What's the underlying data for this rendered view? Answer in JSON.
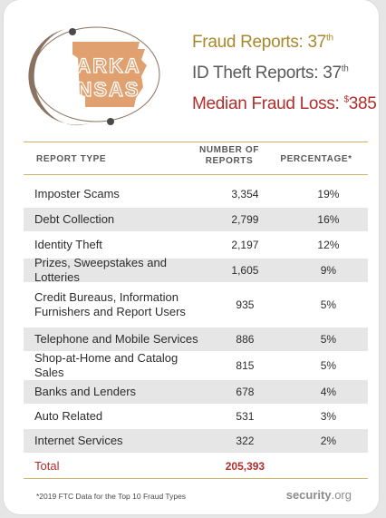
{
  "state": {
    "name_line1": "ARKA",
    "name_line2": "NSAS"
  },
  "stats": {
    "fraud_label": "Fraud Reports: 37",
    "fraud_suffix": "th",
    "idtheft_label": "ID Theft Reports: 37",
    "idtheft_suffix": "th",
    "loss_label": "Median Fraud Loss: ",
    "loss_currency": "$",
    "loss_value": "385"
  },
  "table": {
    "headers": {
      "type": "REPORT TYPE",
      "num_line1": "NUMBER OF",
      "num_line2": "REPORTS",
      "pct": "PERCENTAGE*"
    },
    "rows": [
      {
        "type": "Imposter Scams",
        "reports": "3,354",
        "pct": "19%"
      },
      {
        "type": "Debt Collection",
        "reports": "2,799",
        "pct": "16%"
      },
      {
        "type": "Identity Theft",
        "reports": "2,197",
        "pct": "12%"
      },
      {
        "type": "Prizes, Sweepstakes and Lotteries",
        "reports": "1,605",
        "pct": "9%"
      },
      {
        "type": "Credit Bureaus, Information Furnishers and Report Users",
        "reports": "935",
        "pct": "5%"
      },
      {
        "type": "Telephone and Mobile Services",
        "reports": "886",
        "pct": "5%"
      },
      {
        "type": "Shop-at-Home and Catalog Sales",
        "reports": "815",
        "pct": "5%"
      },
      {
        "type": "Banks and Lenders",
        "reports": "678",
        "pct": "4%"
      },
      {
        "type": "Auto Related",
        "reports": "531",
        "pct": "3%"
      },
      {
        "type": "Internet Services",
        "reports": "322",
        "pct": "2%"
      }
    ],
    "total_label": "Total",
    "total_value": "205,393"
  },
  "footnote": "*2019 FTC Data for the Top 10 Fraud Types",
  "brand": {
    "name": "security",
    "tld": ".org"
  },
  "colors": {
    "gold": "#a9882b",
    "gray": "#58585a",
    "red": "#b12e2b",
    "state_fill": "#e0a06f",
    "moon": "#8a7260"
  }
}
